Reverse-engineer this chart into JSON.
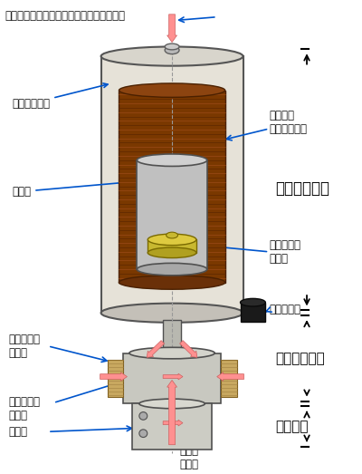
{
  "bg_color": "#ffffff",
  "pink": "#ff9090",
  "pink_edge": "#cc6060",
  "blue_arrow": "#0055cc",
  "black": "#000000",
  "label_fc": "#111111",
  "labels": {
    "top_label": "トラップ・打ち上げ用レーザ（上下２本）",
    "jiki_shield": "磁気シールド",
    "kinichi_jiba": "均一磁場\n発生用コイル",
    "shinku_so": "真空槽",
    "sogo_ryoiki": "相互作用領域",
    "micro_wave": "マイクロ波\n共振器",
    "shinku_pump": "真空ポンプ",
    "trap_coil": "トラップ用\nコイル",
    "trap_ryoiki": "トラップ領域",
    "trap_laser": "トラップ用\nレーザ",
    "kenshutsu_ryoiki": "検出領域",
    "kendetsu_ki": "検出器",
    "kendetsu_laser": "検出用\nレーザ"
  }
}
